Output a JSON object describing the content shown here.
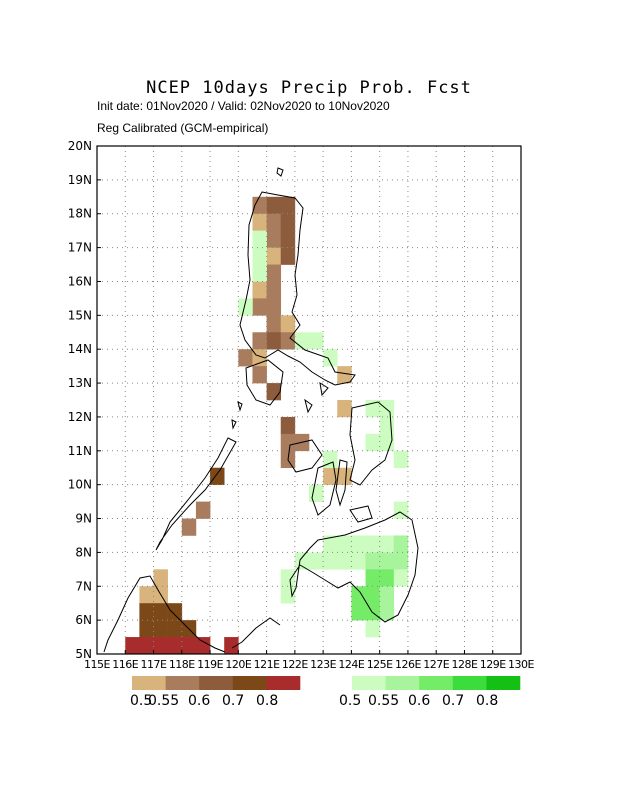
{
  "title": "NCEP 10days Precip Prob. Fcst",
  "subtitle_line1": "Init date: 01Nov2020 / Valid: 02Nov2020 to 10Nov2020",
  "subtitle_line2": "Reg Calibrated (GCM-empirical)",
  "map": {
    "lon_range": [
      115,
      130
    ],
    "lat_range": [
      5,
      20
    ],
    "y_ticks": [
      "5N",
      "6N",
      "7N",
      "8N",
      "9N",
      "10N",
      "11N",
      "12N",
      "13N",
      "14N",
      "15N",
      "16N",
      "17N",
      "18N",
      "19N",
      "20N"
    ],
    "x_ticks": [
      "115E",
      "116E",
      "117E",
      "118E",
      "119E",
      "120E",
      "121E",
      "122E",
      "123E",
      "124E",
      "125E",
      "126E",
      "127E",
      "128E",
      "129E",
      "130E"
    ],
    "grid": true,
    "dry_colors": [
      "#d8b47c",
      "#a87c5c",
      "#8c5c3c",
      "#7c4818",
      "#a82c2c"
    ],
    "wet_colors": [
      "#ccfcc0",
      "#a8f49c",
      "#74ec68",
      "#3cdc3c",
      "#14c014"
    ],
    "dry_labels": [
      "0.5",
      "0.55",
      "0.6",
      "0.7",
      "0.8"
    ],
    "wet_labels": [
      "0.5",
      "0.55",
      "0.6",
      "0.7",
      "0.8"
    ],
    "cells_dry": [
      [
        120.5,
        18.0,
        1
      ],
      [
        121.0,
        18.0,
        2
      ],
      [
        121.5,
        18.0,
        2
      ],
      [
        120.5,
        17.5,
        0
      ],
      [
        121.0,
        17.5,
        1
      ],
      [
        121.5,
        17.5,
        2
      ],
      [
        121.0,
        17.0,
        1
      ],
      [
        121.5,
        17.0,
        2
      ],
      [
        121.0,
        16.5,
        0
      ],
      [
        121.5,
        16.5,
        2
      ],
      [
        121.0,
        16.0,
        1
      ],
      [
        120.5,
        15.5,
        0
      ],
      [
        121.0,
        15.5,
        1
      ],
      [
        120.5,
        15.0,
        1
      ],
      [
        121.0,
        15.0,
        1
      ],
      [
        121.0,
        14.5,
        1
      ],
      [
        121.5,
        14.5,
        0
      ],
      [
        120.5,
        14.0,
        1
      ],
      [
        121.0,
        14.0,
        2
      ],
      [
        121.5,
        14.0,
        1
      ],
      [
        120.0,
        13.5,
        1
      ],
      [
        120.5,
        13.5,
        0
      ],
      [
        120.5,
        13.0,
        1
      ],
      [
        123.5,
        13.0,
        0
      ],
      [
        121.0,
        12.5,
        2
      ],
      [
        123.5,
        12.0,
        0
      ],
      [
        121.5,
        11.5,
        2
      ],
      [
        121.5,
        11.0,
        1
      ],
      [
        122.0,
        11.0,
        1
      ],
      [
        121.5,
        10.5,
        1
      ],
      [
        123.0,
        10.0,
        0
      ],
      [
        123.5,
        10.0,
        0
      ],
      [
        119.0,
        10.0,
        3
      ],
      [
        122.5,
        9.5,
        0
      ],
      [
        118.5,
        9.0,
        1
      ],
      [
        118.0,
        8.5,
        1
      ],
      [
        117.0,
        7.0,
        0
      ],
      [
        116.5,
        6.5,
        0
      ],
      [
        117.0,
        6.5,
        0
      ],
      [
        116.5,
        6.0,
        3
      ],
      [
        117.0,
        6.0,
        3
      ],
      [
        117.5,
        6.0,
        3
      ],
      [
        116.5,
        5.5,
        3
      ],
      [
        117.0,
        5.5,
        3
      ],
      [
        117.5,
        5.5,
        3
      ],
      [
        118.0,
        5.5,
        3
      ],
      [
        116.0,
        5.0,
        4
      ],
      [
        116.5,
        5.0,
        4
      ],
      [
        117.0,
        5.0,
        4
      ],
      [
        117.5,
        5.0,
        4
      ],
      [
        118.0,
        5.0,
        4
      ],
      [
        118.5,
        5.0,
        4
      ],
      [
        119.5,
        5.0,
        4
      ]
    ],
    "cells_wet": [
      [
        120.5,
        17.0,
        0
      ],
      [
        120.5,
        16.5,
        0
      ],
      [
        120.5,
        16.0,
        0
      ],
      [
        120.0,
        15.0,
        0
      ],
      [
        122.0,
        14.0,
        0
      ],
      [
        122.5,
        14.0,
        0
      ],
      [
        123.0,
        13.5,
        0
      ],
      [
        124.5,
        12.0,
        0
      ],
      [
        125.0,
        12.0,
        0
      ],
      [
        125.0,
        11.5,
        0
      ],
      [
        124.5,
        11.0,
        0
      ],
      [
        125.0,
        11.0,
        0
      ],
      [
        123.0,
        10.5,
        0
      ],
      [
        125.5,
        10.5,
        0
      ],
      [
        122.5,
        9.5,
        0
      ],
      [
        125.5,
        9.0,
        0
      ],
      [
        123.0,
        8.0,
        0
      ],
      [
        123.5,
        8.0,
        0
      ],
      [
        124.0,
        8.0,
        0
      ],
      [
        124.5,
        8.0,
        0
      ],
      [
        125.0,
        8.0,
        0
      ],
      [
        125.5,
        8.0,
        1
      ],
      [
        122.0,
        7.5,
        0
      ],
      [
        122.5,
        7.5,
        0
      ],
      [
        123.0,
        7.5,
        0
      ],
      [
        123.5,
        7.5,
        0
      ],
      [
        124.0,
        7.5,
        0
      ],
      [
        124.5,
        7.5,
        1
      ],
      [
        125.0,
        7.5,
        1
      ],
      [
        125.5,
        7.5,
        1
      ],
      [
        121.5,
        7.0,
        0
      ],
      [
        124.5,
        7.0,
        2
      ],
      [
        125.0,
        7.0,
        2
      ],
      [
        125.5,
        7.0,
        0
      ],
      [
        121.5,
        6.5,
        0
      ],
      [
        124.0,
        6.5,
        2
      ],
      [
        124.5,
        6.5,
        2
      ],
      [
        125.0,
        6.5,
        1
      ],
      [
        124.0,
        6.0,
        2
      ],
      [
        124.5,
        6.0,
        2
      ],
      [
        125.0,
        6.0,
        1
      ],
      [
        124.5,
        5.5,
        0
      ]
    ]
  }
}
